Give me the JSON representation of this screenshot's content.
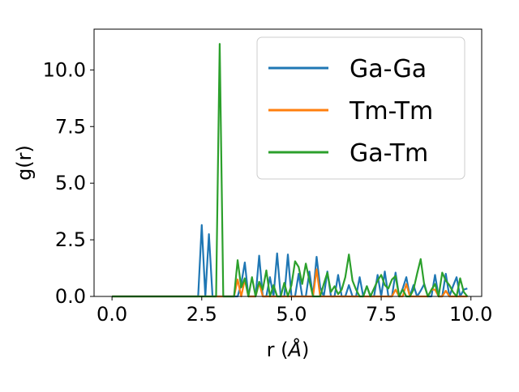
{
  "chart_data": {
    "type": "line",
    "xlabel": "r (",
    "xlabel_unit": "Å",
    "xlabel_close": ")",
    "ylabel": "g(r)",
    "xlim": [
      -0.5,
      10.3
    ],
    "ylim": [
      0,
      11.8
    ],
    "xticks": [
      0.0,
      2.5,
      5.0,
      7.5,
      10.0
    ],
    "xtick_labels": [
      "0.0",
      "2.5",
      "5.0",
      "7.5",
      "10.0"
    ],
    "yticks": [
      0.0,
      2.5,
      5.0,
      7.5,
      10.0
    ],
    "ytick_labels": [
      "0.0",
      "2.5",
      "5.0",
      "7.5",
      "10.0"
    ],
    "legend_position": "top-right",
    "grid": false,
    "series": [
      {
        "name": "Ga-Ga",
        "color": "#1f77b4",
        "x": [
          0.0,
          2.4,
          2.5,
          2.6,
          2.7,
          2.8,
          3.5,
          3.6,
          3.7,
          3.8,
          3.9,
          4.0,
          4.1,
          4.2,
          4.3,
          4.4,
          4.5,
          4.6,
          4.7,
          4.8,
          4.9,
          5.0,
          5.1,
          5.2,
          5.3,
          5.4,
          5.5,
          5.6,
          5.7,
          5.8,
          5.9,
          6.0,
          6.1,
          6.2,
          6.3,
          6.4,
          6.5,
          6.6,
          6.7,
          6.8,
          6.9,
          7.0,
          7.1,
          7.2,
          7.3,
          7.4,
          7.5,
          7.6,
          7.7,
          7.8,
          7.9,
          8.0,
          8.1,
          8.2,
          8.3,
          8.4,
          8.5,
          8.6,
          8.7,
          8.8,
          8.9,
          9.0,
          9.1,
          9.2,
          9.3,
          9.4,
          9.5,
          9.6,
          9.7,
          9.8,
          9.9
        ],
        "y": [
          0.0,
          0.0,
          3.15,
          0.0,
          2.75,
          0.0,
          0.0,
          0.55,
          1.5,
          0.0,
          0.0,
          0.0,
          1.8,
          0.0,
          0.0,
          0.85,
          0.0,
          1.9,
          0.0,
          0.0,
          1.85,
          0.0,
          0.0,
          1.0,
          0.0,
          0.0,
          1.1,
          0.0,
          1.75,
          0.4,
          0.0,
          1.1,
          0.0,
          0.0,
          0.95,
          0.0,
          0.0,
          0.5,
          0.0,
          0.0,
          0.85,
          0.0,
          0.45,
          0.0,
          0.0,
          0.95,
          0.0,
          1.1,
          0.0,
          0.0,
          1.05,
          0.0,
          0.35,
          0.85,
          0.0,
          0.5,
          0.0,
          0.25,
          0.55,
          0.0,
          0.0,
          0.95,
          0.0,
          0.0,
          1.0,
          0.0,
          0.45,
          0.85,
          0.0,
          0.3,
          0.35
        ]
      },
      {
        "name": "Tm-Tm",
        "color": "#ff7f0e",
        "x": [
          0.0,
          3.4,
          3.5,
          3.6,
          3.7,
          3.8,
          3.9,
          4.0,
          4.1,
          4.2,
          4.3,
          4.4,
          4.5,
          4.6,
          4.7,
          4.8,
          4.9,
          5.0,
          5.1,
          5.2,
          5.3,
          5.4,
          5.5,
          5.6,
          5.7,
          5.8,
          5.9,
          6.0,
          6.1,
          6.2,
          6.3,
          6.4,
          6.5,
          6.6,
          6.7,
          6.8,
          6.9,
          7.0,
          7.1,
          7.2,
          7.3,
          7.4,
          7.5,
          7.6,
          7.7,
          7.8,
          7.9,
          8.0,
          8.1,
          8.2,
          8.3,
          8.4,
          8.5,
          8.6,
          8.7,
          8.8,
          8.9,
          9.0,
          9.1,
          9.2,
          9.3,
          9.4,
          9.5,
          9.6,
          9.7,
          9.8,
          9.9
        ],
        "y": [
          0.0,
          0.0,
          0.75,
          0.0,
          0.75,
          0.0,
          0.0,
          0.0,
          0.6,
          0.0,
          0.0,
          0.0,
          0.0,
          0.0,
          0.0,
          0.0,
          0.0,
          0.0,
          0.0,
          0.0,
          0.0,
          0.0,
          0.0,
          0.0,
          1.2,
          0.0,
          0.0,
          0.0,
          0.0,
          0.0,
          0.0,
          0.0,
          0.0,
          0.0,
          0.0,
          0.0,
          0.0,
          0.0,
          0.0,
          0.0,
          0.0,
          0.0,
          0.0,
          0.0,
          0.0,
          0.0,
          0.3,
          0.0,
          0.0,
          0.55,
          0.0,
          0.0,
          0.0,
          0.0,
          0.0,
          0.0,
          0.3,
          0.3,
          0.0,
          0.0,
          0.25,
          0.0,
          0.0,
          0.0,
          0.0,
          0.0,
          0.0
        ]
      },
      {
        "name": "Ga-Tm",
        "color": "#2ca02c",
        "x": [
          0.0,
          2.9,
          3.0,
          3.1,
          3.4,
          3.5,
          3.6,
          3.7,
          3.8,
          3.9,
          4.0,
          4.1,
          4.2,
          4.3,
          4.4,
          4.5,
          4.6,
          4.7,
          4.8,
          4.9,
          5.0,
          5.1,
          5.2,
          5.3,
          5.4,
          5.5,
          5.6,
          5.7,
          5.8,
          5.9,
          6.0,
          6.1,
          6.2,
          6.3,
          6.4,
          6.5,
          6.6,
          6.7,
          6.8,
          6.9,
          7.0,
          7.1,
          7.2,
          7.3,
          7.4,
          7.5,
          7.6,
          7.7,
          7.8,
          7.9,
          8.0,
          8.1,
          8.2,
          8.3,
          8.4,
          8.5,
          8.6,
          8.7,
          8.8,
          8.9,
          9.0,
          9.1,
          9.2,
          9.3,
          9.4,
          9.5,
          9.6,
          9.7,
          9.8,
          9.9
        ],
        "y": [
          0.0,
          0.0,
          11.15,
          0.0,
          0.0,
          1.6,
          0.4,
          0.8,
          0.0,
          0.85,
          0.0,
          0.65,
          0.3,
          1.15,
          0.0,
          0.5,
          0.0,
          0.0,
          0.6,
          0.0,
          0.5,
          1.55,
          1.3,
          0.55,
          1.45,
          0.7,
          0.0,
          0.0,
          0.0,
          0.55,
          1.05,
          0.2,
          0.45,
          0.1,
          0.3,
          0.85,
          1.85,
          0.7,
          0.3,
          0.0,
          0.0,
          0.45,
          0.0,
          0.35,
          0.7,
          0.95,
          0.5,
          0.35,
          0.75,
          0.9,
          0.0,
          0.3,
          0.0,
          0.0,
          0.3,
          1.0,
          1.65,
          0.5,
          0.0,
          0.3,
          0.55,
          0.0,
          1.05,
          0.7,
          0.5,
          0.2,
          0.0,
          0.8,
          0.2,
          0.0
        ]
      }
    ]
  }
}
